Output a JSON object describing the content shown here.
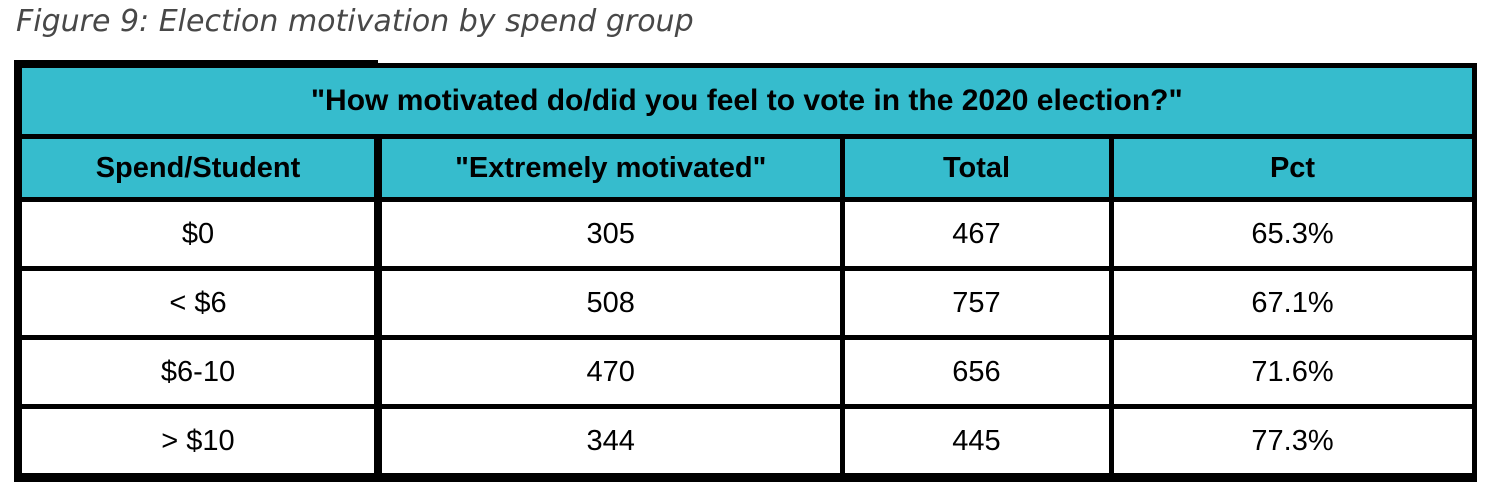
{
  "caption": {
    "text": "Figure 9: Election motivation by spend group"
  },
  "colors": {
    "header_bg": "#36bccd",
    "border": "#000000",
    "caption_text": "#484848",
    "cell_text": "#000000"
  },
  "chart_data": {
    "type": "table",
    "caption": "Figure 9: Election motivation by spend group",
    "title": "\"How motivated do/did you feel to vote in the 2020 election?\"",
    "columns": [
      "Spend/Student",
      "\"Extremely motivated\"",
      "Total",
      "Pct"
    ],
    "rows": [
      [
        "$0",
        "305",
        "467",
        "65.3%"
      ],
      [
        "< $6",
        "508",
        "757",
        "67.1%"
      ],
      [
        "$6-10",
        "470",
        "656",
        "71.6%"
      ],
      [
        "> $10",
        "344",
        "445",
        "77.3%"
      ]
    ],
    "layout_hints": {
      "header_fill": "teal",
      "grid": "heavy black borders",
      "first_column_divider": "extra thick",
      "alignment": "center"
    }
  }
}
